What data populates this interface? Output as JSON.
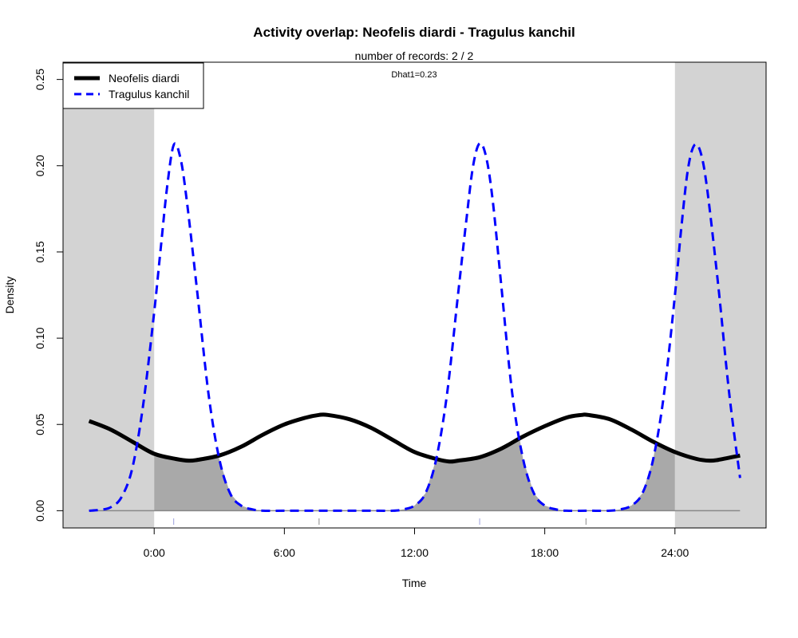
{
  "chart_data": {
    "type": "line",
    "title": "Activity overlap:  Neofelis diardi - Tragulus kanchil",
    "subtitle": "number of records: 2 / 2",
    "annotation": "Dhat1=0.23",
    "xlabel": "Time",
    "ylabel": "Density",
    "xlim": [
      -4.2,
      28.2
    ],
    "ylim": [
      -0.01,
      0.26
    ],
    "x_ticks": [
      0,
      6,
      12,
      18,
      24
    ],
    "x_tick_labels": [
      "0:00",
      "6:00",
      "12:00",
      "18:00",
      "24:00"
    ],
    "y_ticks": [
      0,
      0.05,
      0.1,
      0.15,
      0.2,
      0.25
    ],
    "y_tick_labels": [
      "0.00",
      "0.05",
      "0.10",
      "0.15",
      "0.20",
      "0.25"
    ],
    "night_shading": [
      [
        -4.2,
        0
      ],
      [
        24,
        28.2
      ]
    ],
    "night_color": "#d3d3d3",
    "overlap_color": "#a9a9a9",
    "legend_position": "top-left",
    "rug": {
      "Neofelis diardi": [
        7.6,
        19.9
      ],
      "Tragulus kanchil": [
        0.9,
        15.0
      ]
    },
    "series": [
      {
        "name": "Neofelis diardi",
        "color": "#000000",
        "style": "solid",
        "x": [
          -3.0,
          -2.0,
          -1.0,
          0.0,
          1.0,
          1.6,
          2.0,
          3.0,
          4.0,
          5.0,
          6.0,
          7.0,
          7.6,
          8.0,
          9.0,
          10.0,
          11.0,
          12.0,
          13.0,
          13.6,
          14.0,
          15.0,
          16.0,
          17.0,
          18.0,
          19.0,
          19.7,
          20.0,
          21.0,
          22.0,
          23.0,
          24.0,
          25.0,
          25.6,
          26.0,
          27.0
        ],
        "values": [
          0.052,
          0.047,
          0.04,
          0.033,
          0.03,
          0.029,
          0.0295,
          0.032,
          0.037,
          0.044,
          0.05,
          0.054,
          0.0555,
          0.0555,
          0.053,
          0.048,
          0.041,
          0.034,
          0.03,
          0.0285,
          0.029,
          0.031,
          0.036,
          0.043,
          0.049,
          0.054,
          0.0555,
          0.0555,
          0.053,
          0.047,
          0.04,
          0.034,
          0.03,
          0.029,
          0.0295,
          0.032
        ]
      },
      {
        "name": "Tragulus kanchil",
        "color": "#0000ff",
        "style": "dashed",
        "x": [
          -3.0,
          -2.5,
          -2.0,
          -1.5,
          -1.0,
          -0.5,
          0.0,
          0.3,
          0.6,
          0.9,
          1.2,
          1.5,
          2.0,
          2.5,
          3.0,
          3.5,
          4.0,
          4.5,
          5.0,
          6.0,
          8.0,
          10.0,
          11.0,
          11.5,
          12.0,
          12.5,
          13.0,
          13.5,
          14.0,
          14.4,
          14.7,
          15.0,
          15.3,
          15.6,
          16.0,
          16.5,
          17.0,
          17.5,
          18.0,
          18.5,
          19.0,
          20.0,
          21.0,
          21.5,
          22.0,
          22.5,
          23.0,
          23.5,
          24.0,
          24.3,
          24.6,
          24.9,
          25.2,
          25.5,
          26.0,
          26.5,
          27.0
        ],
        "values": [
          0.0,
          0.0005,
          0.002,
          0.008,
          0.025,
          0.062,
          0.115,
          0.152,
          0.188,
          0.212,
          0.205,
          0.18,
          0.125,
          0.068,
          0.03,
          0.01,
          0.003,
          0.0008,
          0.0,
          0.0,
          0.0,
          0.0,
          0.0,
          0.0008,
          0.003,
          0.01,
          0.03,
          0.068,
          0.125,
          0.17,
          0.2,
          0.213,
          0.205,
          0.18,
          0.13,
          0.068,
          0.03,
          0.01,
          0.003,
          0.0008,
          0.0,
          0.0,
          0.0,
          0.0008,
          0.003,
          0.01,
          0.03,
          0.068,
          0.125,
          0.165,
          0.198,
          0.212,
          0.207,
          0.185,
          0.13,
          0.068,
          0.019
        ]
      }
    ]
  }
}
